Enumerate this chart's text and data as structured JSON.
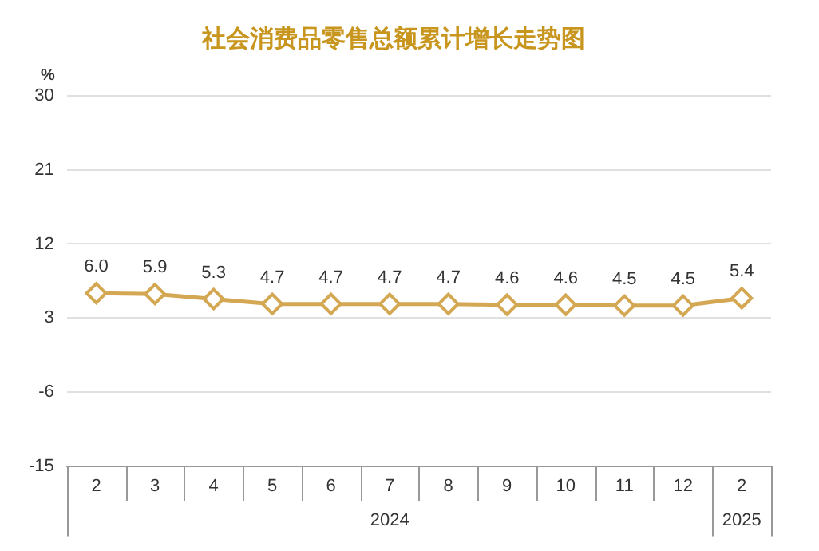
{
  "chart_data": {
    "type": "line",
    "title": "社会消费品零售总额累计增长走势图",
    "ylabel": "%",
    "categories": [
      "2",
      "3",
      "4",
      "5",
      "6",
      "7",
      "8",
      "9",
      "10",
      "11",
      "12",
      "2"
    ],
    "annotations": [
      "2024",
      "2025"
    ],
    "series": [
      {
        "color": "#d4a853",
        "values": [
          6.0,
          5.9,
          5.3,
          4.7,
          4.7,
          4.7,
          4.7,
          4.6,
          4.6,
          4.5,
          4.5,
          5.4
        ],
        "value_labels": [
          "6.0",
          "5.9",
          "5.3",
          "4.7",
          "4.7",
          "4.7",
          "4.7",
          "4.6",
          "4.6",
          "4.5",
          "4.5",
          "5.4"
        ]
      }
    ],
    "ylim": [
      -15,
      30
    ],
    "yticks": [
      -15,
      -6,
      3,
      12,
      21,
      30
    ],
    "grid": "y",
    "marker": "diamond",
    "line_style": "solid",
    "legend": false
  }
}
